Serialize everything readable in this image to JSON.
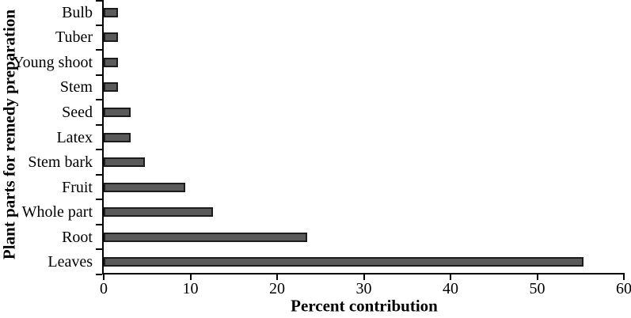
{
  "chart_data": {
    "type": "bar",
    "orientation": "horizontal",
    "title": "",
    "xlabel": "Percent contribution",
    "ylabel": "Plant parts for remedy preparation",
    "categories": [
      "Bulb",
      "Tuber",
      "Young shoot",
      "Stem",
      "Seed",
      "Latex",
      "Stem bark",
      "Fruit",
      "Whole part",
      "Root",
      "Leaves"
    ],
    "values": [
      1.6,
      1.6,
      1.6,
      1.6,
      3.1,
      3.1,
      4.7,
      9.4,
      12.6,
      23.5,
      55.3
    ],
    "xlim": [
      0,
      60
    ],
    "xticks": [
      0,
      10,
      20,
      30,
      40,
      50,
      60
    ],
    "bar_fill_color": "#5a5a5a",
    "bar_border_color": "#1c1c1c",
    "axis_color": "#000000",
    "grid": false,
    "legend": false
  }
}
